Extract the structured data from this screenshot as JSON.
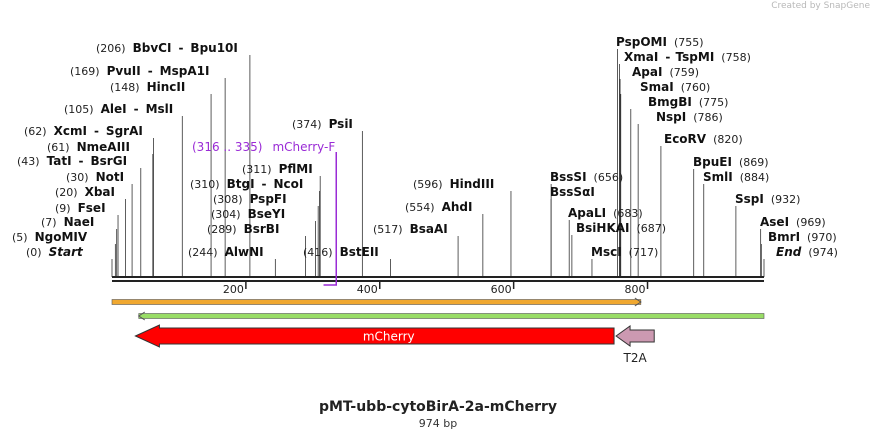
{
  "watermark": "Created by  SnapGene",
  "title": "pMT-ubb-cytoBirA-2a-mCherry",
  "length_label": "974 bp",
  "sequence_length": 974,
  "axis_ticks": [
    "200",
    "400",
    "600",
    "800"
  ],
  "features": [
    {
      "name": "mCherry",
      "color": "#ff0000",
      "direction": "left",
      "start": 35,
      "end": 750
    },
    {
      "name": "T2A",
      "color": "#cc99b1",
      "direction": "left",
      "start": 753,
      "end": 810
    }
  ],
  "orfs": [
    {
      "color": "#f0a830",
      "start": 0,
      "end": 790
    },
    {
      "color": "#99dd66",
      "start": 40,
      "end": 974
    }
  ],
  "primer": {
    "label": "mCherry-F",
    "range": "(316 .. 335)",
    "color": "#9a2bd6",
    "start": 316,
    "end": 335
  },
  "enzymes_left": [
    {
      "pos": "(206)",
      "name": "BbvCI",
      "name2": "Bpu10I",
      "site": 206
    },
    {
      "pos": "(169)",
      "name": "PvuII",
      "name2": "MspA1I",
      "site": 169
    },
    {
      "pos": "(148)",
      "name": "HincII",
      "site": 148
    },
    {
      "pos": "(105)",
      "name": "AleI",
      "name2": "MslI",
      "site": 105
    },
    {
      "pos": "(62)",
      "name": "XcmI",
      "name2": "SgrAI",
      "site": 62
    },
    {
      "pos": "(61)",
      "name": "NmeAIII",
      "site": 61
    },
    {
      "pos": "(43)",
      "name": "TatI",
      "name2": "BsrGI",
      "site": 43
    },
    {
      "pos": "(30)",
      "name": "NotI",
      "site": 30
    },
    {
      "pos": "(20)",
      "name": "XbaI",
      "site": 20
    },
    {
      "pos": "(9)",
      "name": "FseI",
      "site": 9
    },
    {
      "pos": "(7)",
      "name": "NaeI",
      "site": 7
    },
    {
      "pos": "(5)",
      "name": "NgoMIV",
      "site": 5
    },
    {
      "pos": "(0)",
      "name": "Start",
      "site": 0
    }
  ],
  "enzymes_mid": [
    {
      "pos": "(374)",
      "name": "PsiI",
      "site": 374
    },
    {
      "pos": "(311)",
      "name": "PflMI",
      "site": 311
    },
    {
      "pos": "(310)",
      "name": "BtgI",
      "name2": "NcoI",
      "site": 310
    },
    {
      "pos": "(308)",
      "name": "PspFI",
      "site": 308
    },
    {
      "pos": "(304)",
      "name": "BseYI",
      "site": 304
    },
    {
      "pos": "(289)",
      "name": "BsrBI",
      "site": 289
    },
    {
      "pos": "(244)",
      "name": "AlwNI",
      "site": 244
    },
    {
      "pos": "(416)",
      "name": "BstEII",
      "site": 416
    },
    {
      "pos": "(596)",
      "name": "HindIII",
      "site": 596
    },
    {
      "pos": "(554)",
      "name": "AhdI",
      "site": 554
    },
    {
      "pos": "(517)",
      "name": "BsaAI",
      "site": 517
    }
  ],
  "enzymes_right": [
    {
      "name": "BssSI",
      "pos": "(656)",
      "site": 656
    },
    {
      "name": "BssSαI",
      "site": 656
    },
    {
      "name": "ApaLI",
      "pos": "(683)",
      "site": 683
    },
    {
      "name": "BsiHKAI",
      "pos": "(687)",
      "site": 687
    },
    {
      "name": "MscI",
      "pos": "(717)",
      "site": 717
    },
    {
      "name": "PspOMI",
      "pos": "(755)",
      "site": 755
    },
    {
      "name": "XmaI",
      "name2": "TspMI",
      "pos": "(758)",
      "site": 758
    },
    {
      "name": "ApaI",
      "pos": "(759)",
      "site": 759
    },
    {
      "name": "SmaI",
      "pos": "(760)",
      "site": 760
    },
    {
      "name": "BmgBI",
      "pos": "(775)",
      "site": 775
    },
    {
      "name": "NspI",
      "pos": "(786)",
      "site": 786
    },
    {
      "name": "EcoRV",
      "pos": "(820)",
      "site": 820
    },
    {
      "name": "BpuEI",
      "pos": "(869)",
      "site": 869
    },
    {
      "name": "SmlI",
      "pos": "(884)",
      "site": 884
    },
    {
      "name": "SspI",
      "pos": "(932)",
      "site": 932
    },
    {
      "name": "AseI",
      "pos": "(969)",
      "site": 969
    },
    {
      "name": "BmrI",
      "pos": "(970)",
      "site": 970
    },
    {
      "name": "End",
      "pos": "(974)",
      "site": 974
    }
  ]
}
